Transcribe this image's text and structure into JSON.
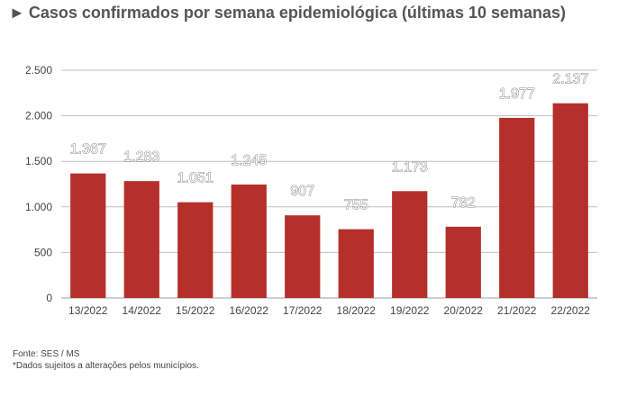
{
  "title": "Casos confirmados por semana epidemiológica (últimas 10 semanas)",
  "title_arrow": "►",
  "footer": {
    "source": "Fonte: SES / MS",
    "note": "*Dados sujeitos a alterações pelos municípios."
  },
  "chart_data": {
    "type": "bar",
    "categories": [
      "13/2022",
      "14/2022",
      "15/2022",
      "16/2022",
      "17/2022",
      "18/2022",
      "19/2022",
      "20/2022",
      "21/2022",
      "22/2022"
    ],
    "values": [
      1367,
      1283,
      1051,
      1245,
      907,
      755,
      1173,
      782,
      1977,
      2137
    ],
    "value_labels": [
      "1.367",
      "1.283",
      "1.051",
      "1.245",
      "907",
      "755",
      "1.173",
      "782",
      "1.977",
      "2.137"
    ],
    "y_ticks": [
      0,
      500,
      1000,
      1500,
      2000,
      2500
    ],
    "y_tick_labels": [
      "0",
      "500",
      "1.000",
      "1.500",
      "2.000",
      "2.500"
    ],
    "ylim": [
      0,
      2500
    ],
    "grid": true,
    "bar_color": "#b5302a",
    "grid_color": "#bfbfbf"
  }
}
